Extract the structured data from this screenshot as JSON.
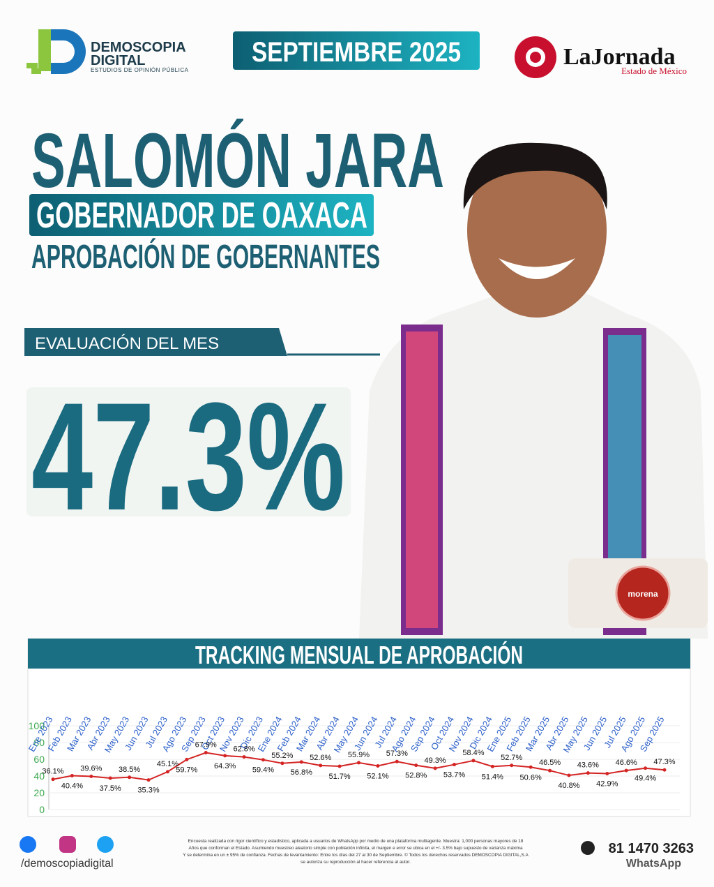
{
  "header": {
    "brand": "DEMOSCOPIA",
    "brand_line2": "DIGITAL",
    "brand_tagline": "ESTUDIOS DE OPINIÓN PÚBLICA",
    "date": "SEPTIEMBRE 2025",
    "newspaper": "LaJornada",
    "newspaper_region": "Estado de México"
  },
  "hero": {
    "name": "SALOMÓN JARA",
    "position": "GOBERNADOR DE OAXACA",
    "subject": "APROBACIÓN DE GOBERNANTES",
    "evaluation_label": "EVALUACIÓN DEL MES",
    "evaluation_value": "47.3%",
    "party": "morena"
  },
  "chart_data": {
    "type": "line",
    "title": "TRACKING MENSUAL DE APROBACIÓN",
    "categories": [
      "Ene 2023",
      "Feb 2023",
      "Mar 2023",
      "Abr 2023",
      "May 2023",
      "Jun 2023",
      "Jul 2023",
      "Ago 2023",
      "Sep 2023",
      "Oct 2023",
      "Nov 2023",
      "Dic 2023",
      "Ene 2024",
      "Feb 2024",
      "Mar 2024",
      "Abr 2024",
      "May 2024",
      "Jun 2024",
      "Jul 2024",
      "Ago 2024",
      "Sep 2024",
      "Oct 2024",
      "Nov 2024",
      "Dic 2024",
      "Ene 2025",
      "Feb 2025",
      "Mar 2025",
      "Abr 2025",
      "May 2025",
      "Jun 2025",
      "Jul 2025",
      "Ago 2025",
      "Sep 2025"
    ],
    "values": [
      36.1,
      40.4,
      39.6,
      37.5,
      38.5,
      35.3,
      45.1,
      59.7,
      67.9,
      64.3,
      62.8,
      59.4,
      55.2,
      56.8,
      52.6,
      51.7,
      55.9,
      52.1,
      57.3,
      52.8,
      49.3,
      53.7,
      58.4,
      51.4,
      52.7,
      50.6,
      46.5,
      40.8,
      43.6,
      42.9,
      46.6,
      49.4,
      47.3
    ],
    "value_labels": [
      "36.1%",
      "40.4%",
      "39.6%",
      "37.5%",
      "38.5%",
      "35.3%",
      "45.1%",
      "59.7%",
      "67.9%",
      "64.3%",
      "62.8%",
      "59.4%",
      "55.2%",
      "56.8%",
      "52.6%",
      "51.7%",
      "55.9%",
      "52.1%",
      "57.3%",
      "52.8%",
      "49.3%",
      "53.7%",
      "58.4%",
      "51.4%",
      "52.7%",
      "50.6%",
      "46.5%",
      "40.8%",
      "43.6%",
      "42.9%",
      "46.6%",
      "49.4%",
      "47.3%"
    ],
    "color": "#d42424",
    "ylim": [
      0,
      100
    ],
    "yticks": [
      0,
      20,
      40,
      60,
      80,
      100
    ],
    "grid": true
  },
  "footer": {
    "social_handle": "/demoscopiadigital",
    "disclaimer": [
      "Encuesta realizada con rigor científico y estadístico, aplicada a usuarios de WhatsApp por medio de una plataforma multiagente. Muestra: 1,000 personas mayores de 18",
      "Años que conforman el Estado. Asumiendo muestreo aleatorio simple con población infinita, el margen e error se ubica en el +/- 3.5% bajo supuesto de varianza máxima",
      "Y se determina en un ± 95% de confianza. Fechas de levantamiento: Entre los días del 27 al 30 de Septiembre. © Todos los derechos reservados DEMOSCOPIA DIGITAL,S.A",
      "se autoriza su reproducción al hacer referencia al autor."
    ],
    "phone": "81 1470 3263",
    "phone_app": "WhatsApp"
  }
}
